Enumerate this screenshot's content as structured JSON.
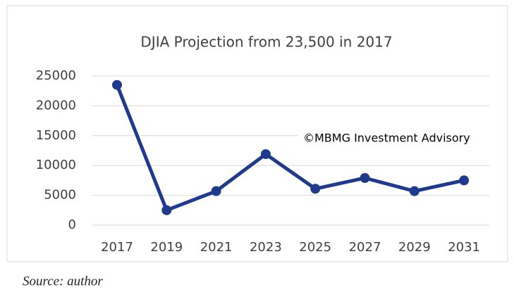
{
  "chart_data": {
    "type": "line",
    "title": "DJIA Projection from 23,500 in 2017",
    "categories": [
      "2017",
      "2019",
      "2021",
      "2023",
      "2025",
      "2027",
      "2029",
      "2031"
    ],
    "series": [
      {
        "name": "DJIA",
        "color": "#1f3a8c",
        "values": [
          23500,
          2500,
          5700,
          11900,
          6100,
          7900,
          5700,
          7500
        ]
      }
    ],
    "ylim": [
      0,
      25000
    ],
    "yticks": [
      0,
      5000,
      10000,
      15000,
      20000,
      25000
    ],
    "grid": true,
    "annotation": "©MBMG Investment Advisory",
    "source": "Source: author"
  }
}
